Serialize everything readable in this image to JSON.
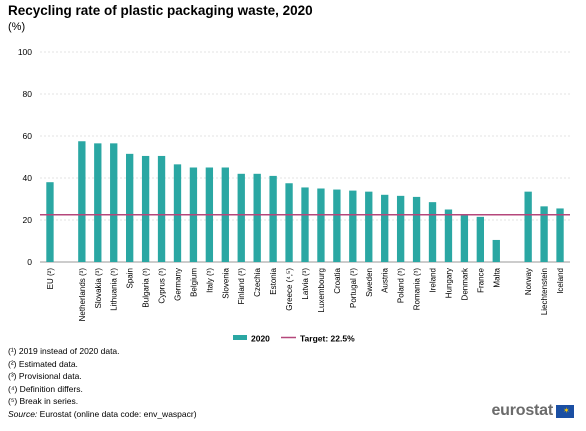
{
  "chart_data": {
    "type": "bar",
    "title": "Recycling rate of plastic packaging waste, 2020",
    "subtitle": "(%)",
    "categories": [
      "EU (²)",
      "Netherlands (³)",
      "Slovakia (³)",
      "Lithuania (³)",
      "Spain",
      "Bulgaria (³)",
      "Cyprus (³)",
      "Germany",
      "Belgium",
      "Italy (³)",
      "Slovenia",
      "Finland (³)",
      "Czechia",
      "Estonia",
      "Greece (⁴,⁵)",
      "Latvia (³)",
      "Luxembourg",
      "Croatia",
      "Portugal (³)",
      "Sweden",
      "Austria",
      "Poland (³)",
      "Romania (³)",
      "Ireland",
      "Hungary",
      "Denmark",
      "France",
      "Malta",
      "Norway",
      "Liechtenstein",
      "Iceland"
    ],
    "series": [
      {
        "name": "2020",
        "color": "#2aa7a3",
        "values": [
          38,
          57.5,
          56.5,
          56.5,
          51.5,
          50.5,
          50.5,
          46.5,
          45,
          45,
          45,
          42,
          42,
          41,
          37.5,
          35.5,
          35,
          34.5,
          34,
          33.5,
          32,
          31.5,
          31,
          28.5,
          25,
          22.5,
          21.5,
          10.5,
          33.5,
          26.5,
          25.5
        ]
      }
    ],
    "target": {
      "name": "Target: 22.5%",
      "value": 22.5,
      "color": "#b5477b"
    },
    "ylim": [
      0,
      100
    ],
    "yticks": [
      "0",
      "20",
      "40",
      "60",
      "80",
      "100"
    ],
    "gaps_after": [
      0,
      27
    ],
    "grid": true,
    "legend_position": "bottom"
  },
  "footnotes": [
    "(¹) 2019 instead of 2020 data.",
    "(²) Estimated data.",
    "(³) Provisional data.",
    "(⁴) Definition differs.",
    "(⁵) Break in series."
  ],
  "source": {
    "label": "Source:",
    "text": "Eurostat (online data code: env_waspacr)"
  },
  "logo": {
    "text": "eurostat",
    "flag_icon": "eu-flag-icon"
  }
}
